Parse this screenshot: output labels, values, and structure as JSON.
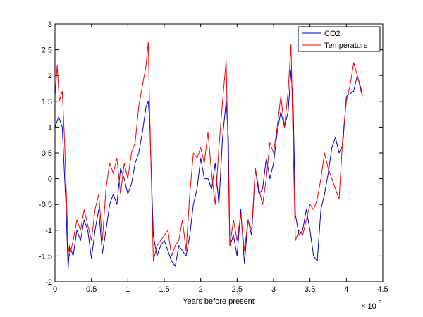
{
  "chart_data": {
    "type": "line",
    "title": "",
    "xlabel": "Years before present",
    "x_multiplier_base": "× 10",
    "x_multiplier_exp": "5",
    "xlim": [
      0,
      4.5
    ],
    "ylim": [
      -2,
      3
    ],
    "xticks": [
      "0",
      "0.5",
      "1",
      "1.5",
      "2",
      "2.5",
      "3",
      "3.5",
      "4",
      "4.5"
    ],
    "yticks": [
      "-2",
      "-1.5",
      "-1",
      "-0.5",
      "0",
      "0.5",
      "1",
      "1.5",
      "2",
      "2.5",
      "3"
    ],
    "grid": false,
    "legend_position": "top-right",
    "series": [
      {
        "name": "CO2",
        "color": "#0000cc",
        "x": [
          0,
          0.05,
          0.1,
          0.15,
          0.18,
          0.2,
          0.25,
          0.3,
          0.35,
          0.4,
          0.45,
          0.5,
          0.55,
          0.6,
          0.65,
          0.7,
          0.75,
          0.8,
          0.85,
          0.9,
          0.95,
          1.0,
          1.05,
          1.1,
          1.15,
          1.2,
          1.25,
          1.28,
          1.3,
          1.35,
          1.4,
          1.45,
          1.5,
          1.55,
          1.6,
          1.65,
          1.7,
          1.75,
          1.8,
          1.85,
          1.9,
          1.95,
          2.0,
          2.05,
          2.1,
          2.15,
          2.2,
          2.25,
          2.3,
          2.35,
          2.38,
          2.4,
          2.45,
          2.5,
          2.55,
          2.6,
          2.65,
          2.7,
          2.75,
          2.8,
          2.85,
          2.9,
          2.95,
          3.0,
          3.05,
          3.1,
          3.15,
          3.2,
          3.24,
          3.27,
          3.3,
          3.35,
          3.4,
          3.45,
          3.5,
          3.55,
          3.6,
          3.65,
          3.7,
          3.75,
          3.8,
          3.85,
          3.9,
          3.95,
          4.0,
          4.05,
          4.1,
          4.15,
          4.2,
          4.22
        ],
        "y": [
          1.0,
          1.2,
          1.0,
          -0.5,
          -1.75,
          -1.3,
          -1.5,
          -1.0,
          -1.2,
          -0.8,
          -1.0,
          -1.55,
          -1.0,
          -0.6,
          -1.45,
          -1.0,
          -0.5,
          -0.3,
          -0.5,
          0.2,
          0.0,
          -0.3,
          -0.1,
          0.3,
          0.5,
          0.9,
          1.4,
          1.5,
          1.1,
          -1.1,
          -1.5,
          -1.3,
          -1.2,
          -1.4,
          -1.6,
          -1.7,
          -1.3,
          -1.4,
          -1.5,
          -1.1,
          -0.5,
          -0.2,
          0.4,
          0.0,
          0.0,
          -0.2,
          0.3,
          -0.5,
          0.8,
          1.5,
          0.8,
          -1.3,
          -1.1,
          -1.5,
          -0.6,
          -1.65,
          -0.8,
          -1.1,
          0.2,
          -0.3,
          -0.2,
          0.4,
          0.0,
          0.3,
          0.9,
          1.3,
          1.0,
          1.3,
          2.1,
          1.4,
          -0.7,
          -1.1,
          -1.0,
          -0.6,
          -1.0,
          -1.5,
          -1.6,
          -0.6,
          -0.3,
          0.1,
          0.6,
          0.8,
          0.5,
          0.65,
          1.6,
          1.65,
          1.7,
          2.0,
          1.75,
          1.6
        ]
      },
      {
        "name": "Temperature",
        "color": "#ff0000",
        "x": [
          0,
          0.03,
          0.06,
          0.1,
          0.13,
          0.18,
          0.2,
          0.25,
          0.3,
          0.35,
          0.4,
          0.45,
          0.5,
          0.55,
          0.6,
          0.65,
          0.7,
          0.75,
          0.8,
          0.85,
          0.9,
          0.95,
          1.0,
          1.05,
          1.1,
          1.15,
          1.2,
          1.25,
          1.28,
          1.3,
          1.35,
          1.4,
          1.45,
          1.5,
          1.55,
          1.6,
          1.65,
          1.7,
          1.75,
          1.8,
          1.85,
          1.9,
          1.95,
          2.0,
          2.05,
          2.1,
          2.15,
          2.2,
          2.25,
          2.3,
          2.35,
          2.38,
          2.4,
          2.45,
          2.5,
          2.55,
          2.6,
          2.65,
          2.7,
          2.75,
          2.8,
          2.85,
          2.9,
          2.95,
          3.0,
          3.05,
          3.1,
          3.15,
          3.2,
          3.24,
          3.27,
          3.3,
          3.35,
          3.4,
          3.45,
          3.5,
          3.55,
          3.6,
          3.65,
          3.7,
          3.75,
          3.8,
          3.85,
          3.9,
          3.95,
          4.0,
          4.05,
          4.1,
          4.15,
          4.2,
          4.22
        ],
        "y": [
          1.6,
          2.2,
          1.5,
          1.7,
          0.8,
          -1.3,
          -1.5,
          -1.2,
          -0.8,
          -1.0,
          -0.6,
          -0.9,
          -1.2,
          -0.6,
          -0.3,
          -1.2,
          -0.2,
          0.3,
          0.1,
          0.4,
          -0.3,
          0.3,
          0.0,
          0.5,
          0.7,
          1.4,
          1.8,
          2.2,
          2.65,
          1.3,
          -1.6,
          -1.3,
          -1.2,
          -1.1,
          -1.0,
          -1.5,
          -1.3,
          -1.2,
          -0.8,
          -1.4,
          -0.3,
          0.5,
          0.4,
          0.6,
          0.3,
          0.9,
          0.1,
          -0.5,
          0.6,
          1.5,
          2.3,
          0.2,
          -1.3,
          -0.8,
          -1.2,
          -0.7,
          -1.4,
          -0.8,
          -1.0,
          0.2,
          -0.2,
          -0.5,
          0.0,
          0.7,
          0.5,
          1.0,
          1.6,
          1.0,
          1.7,
          2.6,
          0.6,
          -1.2,
          -1.0,
          -1.1,
          -0.8,
          -0.5,
          -0.6,
          -0.4,
          0.0,
          0.5,
          0.2,
          0.0,
          -0.2,
          -0.4,
          0.8,
          1.5,
          1.8,
          2.25,
          2.0,
          1.7,
          1.6
        ]
      }
    ]
  }
}
